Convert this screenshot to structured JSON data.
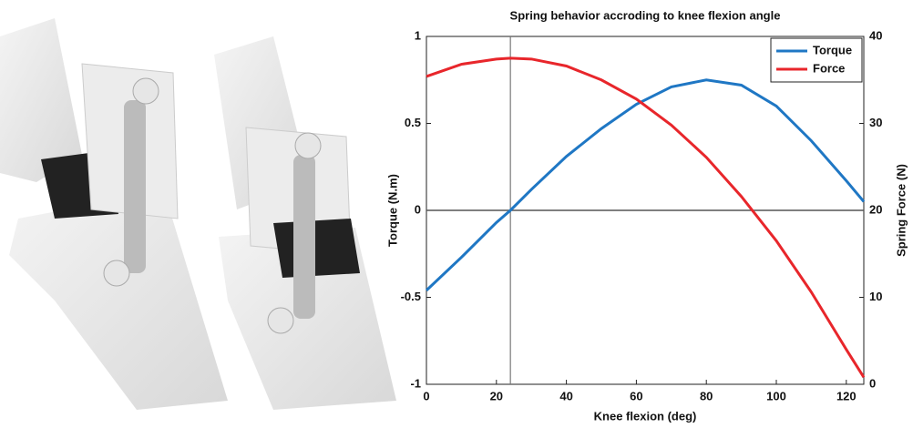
{
  "chart_data": {
    "type": "line",
    "title": "Spring behavior accroding to knee flexion angle",
    "xlabel": "Knee flexion (deg)",
    "ylabel": "Torque (N.m)",
    "y2label": "Spring Force (N)",
    "x": [
      0,
      10,
      20,
      24,
      30,
      40,
      50,
      60,
      70,
      80,
      90,
      100,
      110,
      120,
      125
    ],
    "series": [
      {
        "name": "Torque",
        "color": "#1f77c4",
        "values": [
          -0.46,
          -0.27,
          -0.07,
          0,
          0.12,
          0.31,
          0.47,
          0.61,
          0.71,
          0.75,
          0.72,
          0.6,
          0.4,
          0.17,
          0.05
        ]
      },
      {
        "name": "Force",
        "color": "#e8262b",
        "axis": "y2",
        "values": [
          35.4,
          36.8,
          37.4,
          37.5,
          37.4,
          36.6,
          35.0,
          32.8,
          29.8,
          26.1,
          21.6,
          16.5,
          10.6,
          4.0,
          0.8
        ]
      }
    ],
    "xlim": [
      0,
      125
    ],
    "xticks": [
      0,
      20,
      40,
      60,
      80,
      100,
      120
    ],
    "ylim": [
      -1,
      1
    ],
    "yticks": [
      -1,
      -0.5,
      0,
      0.5,
      1
    ],
    "y2lim": [
      0,
      40
    ],
    "y2ticks": [
      0,
      10,
      20,
      30,
      40
    ],
    "vline": 24,
    "hline": 0,
    "legend": "upper right"
  }
}
